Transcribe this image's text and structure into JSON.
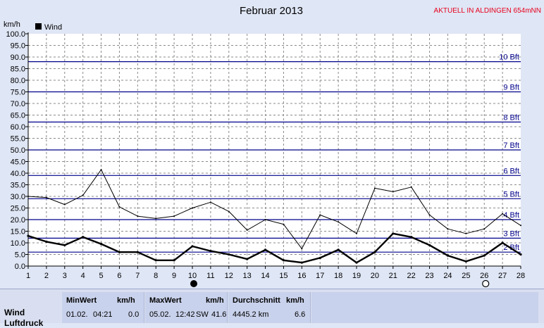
{
  "header": {
    "title": "Februar 2013",
    "station": "AKTUELL IN ALDINGEN 654mNN",
    "unit": "km/h"
  },
  "legend": {
    "label": "Wind",
    "color": "#000000"
  },
  "colors": {
    "plot_bg": "#ffffff",
    "grid": "#8a8a8a",
    "beaufort": "#00008b",
    "station_text": "#e8001c"
  },
  "chart_data": {
    "type": "line",
    "title": "Februar 2013",
    "ylabel": "km/h",
    "ylim": [
      0,
      100
    ],
    "yticks": [
      "0.0",
      "5.0",
      "10.0",
      "15.0",
      "20.0",
      "25.0",
      "30.0",
      "35.0",
      "40.0",
      "45.0",
      "50.0",
      "55.0",
      "60.0",
      "65.0",
      "70.0",
      "75.0",
      "80.0",
      "85.0",
      "90.0",
      "95.0",
      "100.0"
    ],
    "x": [
      1,
      2,
      3,
      4,
      5,
      6,
      7,
      8,
      9,
      10,
      11,
      12,
      13,
      14,
      15,
      16,
      17,
      18,
      19,
      20,
      21,
      22,
      23,
      24,
      25,
      26,
      27,
      28
    ],
    "series": [
      {
        "name": "Wind",
        "style": "thick",
        "values": [
          13,
          10.5,
          9,
          12.5,
          9.5,
          6,
          6,
          2.5,
          2.5,
          8.5,
          6.5,
          5,
          3,
          7,
          2.5,
          1.5,
          3.5,
          7,
          1.5,
          6,
          14,
          12.5,
          9,
          4.5,
          2,
          4.5,
          10,
          5
        ]
      },
      {
        "style": "thin",
        "values": [
          30,
          29.5,
          26.5,
          30.5,
          41.5,
          25.5,
          21.5,
          20.5,
          21.5,
          25,
          27.5,
          23.5,
          15.5,
          20,
          18,
          7.5,
          22,
          19,
          14,
          33.5,
          32,
          34,
          22,
          16,
          14,
          16,
          22.5,
          17.5
        ]
      }
    ],
    "beaufort_lines": [
      {
        "value": 6,
        "label": "2 Bft"
      },
      {
        "value": 12,
        "label": "3 Bft"
      },
      {
        "value": 20,
        "label": "4 Bft"
      },
      {
        "value": 29,
        "label": "5 Bft"
      },
      {
        "value": 39,
        "label": "6 Bft"
      },
      {
        "value": 50,
        "label": "7 Bft"
      },
      {
        "value": 62,
        "label": "8 Bft"
      },
      {
        "value": 75,
        "label": "9 Bft"
      },
      {
        "value": 88,
        "label": "10 Bft"
      }
    ],
    "markers": [
      {
        "x": 10,
        "symbol": "filled-circle"
      },
      {
        "x": 26,
        "symbol": "open-circle"
      }
    ],
    "grid": true,
    "legend_position": "top-left"
  },
  "stats": {
    "row_label": "Wind",
    "row_label_2": "Luftdruck",
    "min": {
      "header": "MinWert",
      "unit": "km/h",
      "date": "01.02.",
      "time": "04:21",
      "value": "0.0"
    },
    "max": {
      "header": "MaxWert",
      "unit": "km/h",
      "date": "05.02.",
      "time": "12:42",
      "dir": "SW",
      "value": "41.6"
    },
    "avg": {
      "header": "Durchschnitt",
      "unit": "km/h",
      "distance": "4445.2 km",
      "value": "6.6"
    }
  }
}
